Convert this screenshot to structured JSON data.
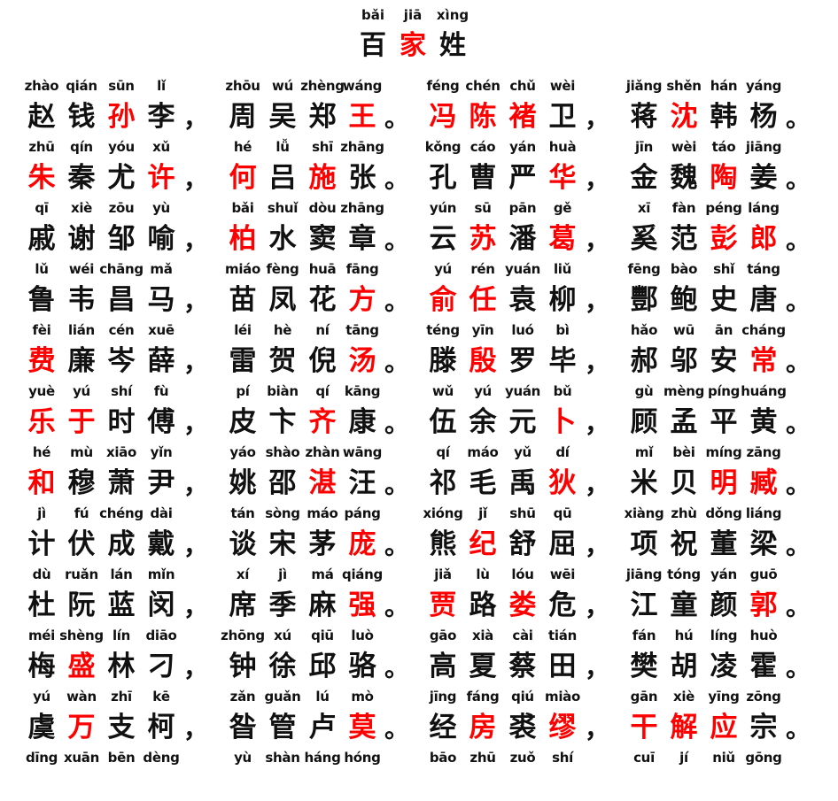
{
  "title": {
    "pinyin": [
      "bǎi",
      "jiā",
      "xìng"
    ],
    "chars": [
      "百",
      "家",
      "姓"
    ],
    "red": [
      false,
      true,
      false
    ]
  },
  "colors": {
    "text": "#111111",
    "highlight": "#ff0000",
    "background": "#ffffff"
  },
  "rows": [
    {
      "groups": [
        {
          "pinyin": [
            "zhào",
            "qián",
            "sūn",
            "lǐ"
          ],
          "chars": [
            "赵",
            "钱",
            "孙",
            "李"
          ],
          "red": [
            false,
            false,
            true,
            false
          ],
          "punct": "，"
        },
        {
          "pinyin": [
            "zhōu",
            "wú",
            "zhèng",
            "wáng"
          ],
          "chars": [
            "周",
            "吴",
            "郑",
            "王"
          ],
          "red": [
            false,
            false,
            false,
            true
          ],
          "punct": "。"
        },
        {
          "pinyin": [
            "féng",
            "chén",
            "chǔ",
            "wèi"
          ],
          "chars": [
            "冯",
            "陈",
            "褚",
            "卫"
          ],
          "red": [
            true,
            true,
            true,
            false
          ],
          "punct": "，"
        },
        {
          "pinyin": [
            "jiǎng",
            "shěn",
            "hán",
            "yáng"
          ],
          "chars": [
            "蒋",
            "沈",
            "韩",
            "杨"
          ],
          "red": [
            false,
            true,
            false,
            false
          ],
          "punct": "。"
        }
      ]
    },
    {
      "groups": [
        {
          "pinyin": [
            "zhū",
            "qín",
            "yóu",
            "xǔ"
          ],
          "chars": [
            "朱",
            "秦",
            "尤",
            "许"
          ],
          "red": [
            true,
            false,
            false,
            true
          ],
          "punct": "，"
        },
        {
          "pinyin": [
            "hé",
            "lǚ",
            "shī",
            "zhāng"
          ],
          "chars": [
            "何",
            "吕",
            "施",
            "张"
          ],
          "red": [
            true,
            false,
            true,
            false
          ],
          "punct": "。"
        },
        {
          "pinyin": [
            "kǒng",
            "cáo",
            "yán",
            "huà"
          ],
          "chars": [
            "孔",
            "曹",
            "严",
            "华"
          ],
          "red": [
            false,
            false,
            false,
            true
          ],
          "punct": "，"
        },
        {
          "pinyin": [
            "jīn",
            "wèi",
            "táo",
            "jiāng"
          ],
          "chars": [
            "金",
            "魏",
            "陶",
            "姜"
          ],
          "red": [
            false,
            false,
            true,
            false
          ],
          "punct": "。"
        }
      ]
    },
    {
      "groups": [
        {
          "pinyin": [
            "qī",
            "xiè",
            "zōu",
            "yù"
          ],
          "chars": [
            "戚",
            "谢",
            "邹",
            "喻"
          ],
          "red": [
            false,
            false,
            false,
            false
          ],
          "punct": "，"
        },
        {
          "pinyin": [
            "bǎi",
            "shuǐ",
            "dòu",
            "zhāng"
          ],
          "chars": [
            "柏",
            "水",
            "窦",
            "章"
          ],
          "red": [
            true,
            false,
            false,
            false
          ],
          "punct": "。"
        },
        {
          "pinyin": [
            "yún",
            "sū",
            "pān",
            "gě"
          ],
          "chars": [
            "云",
            "苏",
            "潘",
            "葛"
          ],
          "red": [
            false,
            true,
            false,
            true
          ],
          "punct": "，"
        },
        {
          "pinyin": [
            "xī",
            "fàn",
            "péng",
            "láng"
          ],
          "chars": [
            "奚",
            "范",
            "彭",
            "郎"
          ],
          "red": [
            false,
            false,
            true,
            true
          ],
          "punct": "。"
        }
      ]
    },
    {
      "groups": [
        {
          "pinyin": [
            "lǔ",
            "wéi",
            "chāng",
            "mǎ"
          ],
          "chars": [
            "鲁",
            "韦",
            "昌",
            "马"
          ],
          "red": [
            false,
            false,
            false,
            false
          ],
          "punct": "，"
        },
        {
          "pinyin": [
            "miáo",
            "fèng",
            "huā",
            "fāng"
          ],
          "chars": [
            "苗",
            "凤",
            "花",
            "方"
          ],
          "red": [
            false,
            false,
            false,
            true
          ],
          "punct": "。"
        },
        {
          "pinyin": [
            "yú",
            "rén",
            "yuán",
            "liǔ"
          ],
          "chars": [
            "俞",
            "任",
            "袁",
            "柳"
          ],
          "red": [
            true,
            true,
            false,
            false
          ],
          "punct": "，"
        },
        {
          "pinyin": [
            "fēng",
            "bào",
            "shǐ",
            "táng"
          ],
          "chars": [
            "酆",
            "鲍",
            "史",
            "唐"
          ],
          "red": [
            false,
            false,
            false,
            false
          ],
          "punct": "。"
        }
      ]
    },
    {
      "groups": [
        {
          "pinyin": [
            "fèi",
            "lián",
            "cén",
            "xuē"
          ],
          "chars": [
            "费",
            "廉",
            "岑",
            "薛"
          ],
          "red": [
            true,
            false,
            false,
            false
          ],
          "punct": "，"
        },
        {
          "pinyin": [
            "léi",
            "hè",
            "ní",
            "tāng"
          ],
          "chars": [
            "雷",
            "贺",
            "倪",
            "汤"
          ],
          "red": [
            false,
            false,
            false,
            true
          ],
          "punct": "。"
        },
        {
          "pinyin": [
            "téng",
            "yīn",
            "luó",
            "bì"
          ],
          "chars": [
            "滕",
            "殷",
            "罗",
            "毕"
          ],
          "red": [
            false,
            true,
            false,
            false
          ],
          "punct": "，"
        },
        {
          "pinyin": [
            "hǎo",
            "wū",
            "ān",
            "cháng"
          ],
          "chars": [
            "郝",
            "邬",
            "安",
            "常"
          ],
          "red": [
            false,
            false,
            false,
            true
          ],
          "punct": "。"
        }
      ]
    },
    {
      "groups": [
        {
          "pinyin": [
            "yuè",
            "yú",
            "shí",
            "fù"
          ],
          "chars": [
            "乐",
            "于",
            "时",
            "傅"
          ],
          "red": [
            true,
            true,
            false,
            false
          ],
          "punct": "，"
        },
        {
          "pinyin": [
            "pí",
            "biàn",
            "qí",
            "kāng"
          ],
          "chars": [
            "皮",
            "卞",
            "齐",
            "康"
          ],
          "red": [
            false,
            false,
            true,
            false
          ],
          "punct": "。"
        },
        {
          "pinyin": [
            "wǔ",
            "yú",
            "yuán",
            "bǔ"
          ],
          "chars": [
            "伍",
            "余",
            "元",
            "卜"
          ],
          "red": [
            false,
            false,
            false,
            true
          ],
          "punct": "，"
        },
        {
          "pinyin": [
            "gù",
            "mèng",
            "píng",
            "huáng"
          ],
          "chars": [
            "顾",
            "孟",
            "平",
            "黄"
          ],
          "red": [
            false,
            false,
            false,
            false
          ],
          "punct": "。"
        }
      ]
    },
    {
      "groups": [
        {
          "pinyin": [
            "hé",
            "mù",
            "xiāo",
            "yǐn"
          ],
          "chars": [
            "和",
            "穆",
            "萧",
            "尹"
          ],
          "red": [
            true,
            false,
            false,
            false
          ],
          "punct": "，"
        },
        {
          "pinyin": [
            "yáo",
            "shào",
            "zhàn",
            "wāng"
          ],
          "chars": [
            "姚",
            "邵",
            "湛",
            "汪"
          ],
          "red": [
            false,
            false,
            true,
            false
          ],
          "punct": "。"
        },
        {
          "pinyin": [
            "qí",
            "máo",
            "yǔ",
            "dí"
          ],
          "chars": [
            "祁",
            "毛",
            "禹",
            "狄"
          ],
          "red": [
            false,
            false,
            false,
            true
          ],
          "punct": "，"
        },
        {
          "pinyin": [
            "mǐ",
            "bèi",
            "míng",
            "zāng"
          ],
          "chars": [
            "米",
            "贝",
            "明",
            "臧"
          ],
          "red": [
            false,
            false,
            true,
            true
          ],
          "punct": "。"
        }
      ]
    },
    {
      "groups": [
        {
          "pinyin": [
            "jì",
            "fú",
            "chéng",
            "dài"
          ],
          "chars": [
            "计",
            "伏",
            "成",
            "戴"
          ],
          "red": [
            false,
            false,
            false,
            false
          ],
          "punct": "，"
        },
        {
          "pinyin": [
            "tán",
            "sòng",
            "máo",
            "páng"
          ],
          "chars": [
            "谈",
            "宋",
            "茅",
            "庞"
          ],
          "red": [
            false,
            false,
            false,
            true
          ],
          "punct": "。"
        },
        {
          "pinyin": [
            "xióng",
            "jǐ",
            "shū",
            "qū"
          ],
          "chars": [
            "熊",
            "纪",
            "舒",
            "屈"
          ],
          "red": [
            false,
            true,
            false,
            false
          ],
          "punct": "，"
        },
        {
          "pinyin": [
            "xiàng",
            "zhù",
            "dǒng",
            "liáng"
          ],
          "chars": [
            "项",
            "祝",
            "董",
            "梁"
          ],
          "red": [
            false,
            false,
            false,
            false
          ],
          "punct": "。"
        }
      ]
    },
    {
      "groups": [
        {
          "pinyin": [
            "dù",
            "ruǎn",
            "lán",
            "mǐn"
          ],
          "chars": [
            "杜",
            "阮",
            "蓝",
            "闵"
          ],
          "red": [
            false,
            false,
            false,
            false
          ],
          "punct": "，"
        },
        {
          "pinyin": [
            "xí",
            "jì",
            "má",
            "qiáng"
          ],
          "chars": [
            "席",
            "季",
            "麻",
            "强"
          ],
          "red": [
            false,
            false,
            false,
            true
          ],
          "punct": "。"
        },
        {
          "pinyin": [
            "jiǎ",
            "lù",
            "lóu",
            "wēi"
          ],
          "chars": [
            "贾",
            "路",
            "娄",
            "危"
          ],
          "red": [
            true,
            false,
            true,
            false
          ],
          "punct": "，"
        },
        {
          "pinyin": [
            "jiāng",
            "tóng",
            "yán",
            "guō"
          ],
          "chars": [
            "江",
            "童",
            "颜",
            "郭"
          ],
          "red": [
            false,
            false,
            false,
            true
          ],
          "punct": "。"
        }
      ]
    },
    {
      "groups": [
        {
          "pinyin": [
            "méi",
            "shèng",
            "lín",
            "diāo"
          ],
          "chars": [
            "梅",
            "盛",
            "林",
            "刁"
          ],
          "red": [
            false,
            true,
            false,
            false
          ],
          "punct": "，"
        },
        {
          "pinyin": [
            "zhōng",
            "xú",
            "qiū",
            "luò"
          ],
          "chars": [
            "钟",
            "徐",
            "邱",
            "骆"
          ],
          "red": [
            false,
            false,
            false,
            false
          ],
          "punct": "。"
        },
        {
          "pinyin": [
            "gāo",
            "xià",
            "cài",
            "tián"
          ],
          "chars": [
            "高",
            "夏",
            "蔡",
            "田"
          ],
          "red": [
            false,
            false,
            false,
            false
          ],
          "punct": "，"
        },
        {
          "pinyin": [
            "fán",
            "hú",
            "líng",
            "huò"
          ],
          "chars": [
            "樊",
            "胡",
            "凌",
            "霍"
          ],
          "red": [
            false,
            false,
            false,
            false
          ],
          "punct": "。"
        }
      ]
    },
    {
      "groups": [
        {
          "pinyin": [
            "yú",
            "wàn",
            "zhī",
            "kē"
          ],
          "chars": [
            "虞",
            "万",
            "支",
            "柯"
          ],
          "red": [
            false,
            true,
            false,
            false
          ],
          "punct": "，"
        },
        {
          "pinyin": [
            "zǎn",
            "guǎn",
            "lú",
            "mò"
          ],
          "chars": [
            "昝",
            "管",
            "卢",
            "莫"
          ],
          "red": [
            false,
            false,
            false,
            true
          ],
          "punct": "。"
        },
        {
          "pinyin": [
            "jīng",
            "fáng",
            "qiú",
            "miào"
          ],
          "chars": [
            "经",
            "房",
            "裘",
            "缪"
          ],
          "red": [
            false,
            true,
            false,
            true
          ],
          "punct": "，"
        },
        {
          "pinyin": [
            "gān",
            "xiè",
            "yīng",
            "zōng"
          ],
          "chars": [
            "干",
            "解",
            "应",
            "宗"
          ],
          "red": [
            true,
            true,
            true,
            false
          ],
          "punct": "。"
        }
      ]
    },
    {
      "groups": [
        {
          "pinyin": [
            "dīng",
            "xuān",
            "bēn",
            "dèng"
          ],
          "chars": [],
          "red": [],
          "punct": ""
        },
        {
          "pinyin": [
            "yù",
            "shàn",
            "háng",
            "hóng"
          ],
          "chars": [],
          "red": [],
          "punct": ""
        },
        {
          "pinyin": [
            "bāo",
            "zhū",
            "zuǒ",
            "shí"
          ],
          "chars": [],
          "red": [],
          "punct": ""
        },
        {
          "pinyin": [
            "cuī",
            "jí",
            "niǔ",
            "gōng"
          ],
          "chars": [],
          "red": [],
          "punct": ""
        }
      ]
    }
  ]
}
